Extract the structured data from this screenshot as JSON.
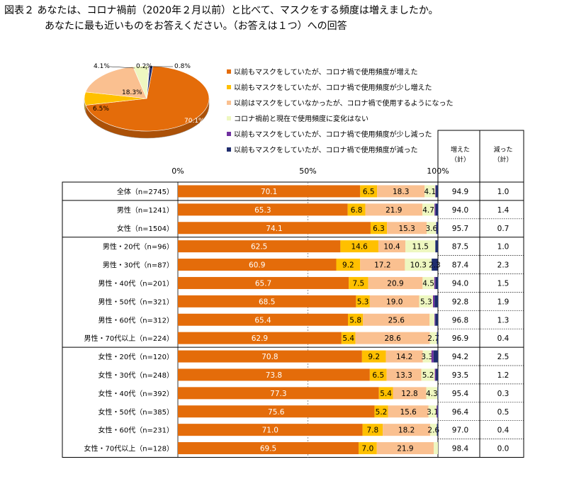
{
  "title": {
    "line1": "図表２ あなたは、コロナ禍前（2020年２月以前）と比べて、マスクをする頻度は増えましたか。",
    "line2": "あなたに最も近いものをお答えください。（お答えは１つ）への回答"
  },
  "chart_data": {
    "type": "bar",
    "stacked": true,
    "orientation": "horizontal",
    "axis": {
      "ticks": [
        "0%",
        "50%",
        "100%"
      ],
      "range": [
        0,
        100
      ]
    },
    "series": [
      {
        "name": "以前もマスクをしていたが、コロナ禍で使用頻度が増えた",
        "color": "#E46C0A"
      },
      {
        "name": "以前もマスクをしていたが、コロナ禍で使用頻度が少し増えた",
        "color": "#FFC000"
      },
      {
        "name": "以前はマスクをしていなかったが、コロナ禍で使用するようになった",
        "color": "#FAC090"
      },
      {
        "name": "コロナ禍前と現在で使用頻度に変化はない",
        "color": "#EEF7C0"
      },
      {
        "name": "以前もマスクをしていたが、コロナ禍で使用頻度が少し減った",
        "color": "#7030A0"
      },
      {
        "name": "以前もマスクをしていたが、コロナ禍で使用頻度が減った",
        "color": "#1F2D6E"
      }
    ],
    "summary_headers": [
      "増えた（計）",
      "減った（計）"
    ],
    "groups": [
      {
        "rows": [
          {
            "label": "全体（n=2745）",
            "values": [
              70.1,
              6.5,
              18.3,
              4.1,
              0.2,
              0.8
            ],
            "labels": [
              "70.1",
              "6.5",
              "18.3",
              "4.1",
              "",
              ""
            ],
            "increase": "94.9",
            "decrease": "1.0"
          }
        ]
      },
      {
        "rows": [
          {
            "label": "男性（n=1241）",
            "values": [
              65.3,
              6.8,
              21.9,
              4.7,
              0.4,
              1.0
            ],
            "labels": [
              "65.3",
              "6.8",
              "21.9",
              "4.7",
              "",
              ""
            ],
            "increase": "94.0",
            "decrease": "1.4"
          },
          {
            "label": "女性（n=1504）",
            "values": [
              74.1,
              6.3,
              15.3,
              3.6,
              0.1,
              0.6
            ],
            "labels": [
              "74.1",
              "6.3",
              "15.3",
              "3.6",
              "",
              ""
            ],
            "increase": "95.7",
            "decrease": "0.7"
          }
        ]
      },
      {
        "rows": [
          {
            "label": "男性・20代（n=96）",
            "values": [
              62.5,
              14.6,
              10.4,
              11.5,
              0.0,
              1.0
            ],
            "labels": [
              "62.5",
              "14.6",
              "10.4",
              "11.5",
              "",
              ""
            ],
            "increase": "87.5",
            "decrease": "1.0"
          },
          {
            "label": "男性・30代（n=87）",
            "values": [
              60.9,
              9.2,
              17.2,
              10.3,
              0.0,
              2.3
            ],
            "labels": [
              "60.9",
              "9.2",
              "17.2",
              "10.3",
              "",
              "2.3"
            ],
            "increase": "87.4",
            "decrease": "2.3"
          },
          {
            "label": "男性・40代（n=201）",
            "values": [
              65.7,
              7.5,
              20.9,
              4.5,
              0.5,
              1.0
            ],
            "labels": [
              "65.7",
              "7.5",
              "20.9",
              "4.5",
              "",
              ""
            ],
            "increase": "94.0",
            "decrease": "1.5"
          },
          {
            "label": "男性・50代（n=321）",
            "values": [
              68.5,
              5.3,
              19.0,
              5.3,
              0.6,
              1.3
            ],
            "labels": [
              "68.5",
              "5.3",
              "19.0",
              "5.3",
              "",
              ""
            ],
            "increase": "92.8",
            "decrease": "1.9"
          },
          {
            "label": "男性・60代（n=312）",
            "values": [
              65.4,
              5.8,
              25.6,
              1.9,
              0.3,
              1.0
            ],
            "labels": [
              "65.4",
              "5.8",
              "25.6",
              "",
              "",
              ""
            ],
            "increase": "96.8",
            "decrease": "1.3"
          },
          {
            "label": "男性・70代以上（n=224）",
            "values": [
              62.9,
              5.4,
              28.6,
              2.7,
              0.0,
              0.4
            ],
            "labels": [
              "62.9",
              "5.4",
              "28.6",
              "2.7",
              "",
              ""
            ],
            "increase": "96.9",
            "decrease": "0.4"
          }
        ]
      },
      {
        "rows": [
          {
            "label": "女性・20代（n=120）",
            "values": [
              70.8,
              9.2,
              14.2,
              3.3,
              0.8,
              1.7
            ],
            "labels": [
              "70.8",
              "9.2",
              "14.2",
              "3.3",
              "",
              ""
            ],
            "increase": "94.2",
            "decrease": "2.5"
          },
          {
            "label": "女性・30代（n=248）",
            "values": [
              73.8,
              6.5,
              13.3,
              5.2,
              0.4,
              0.8
            ],
            "labels": [
              "73.8",
              "6.5",
              "13.3",
              "5.2",
              "",
              ""
            ],
            "increase": "93.5",
            "decrease": "1.2"
          },
          {
            "label": "女性・40代（n=392）",
            "values": [
              77.3,
              5.4,
              12.8,
              4.3,
              0.0,
              0.3
            ],
            "labels": [
              "77.3",
              "5.4",
              "12.8",
              "4.3",
              "",
              ""
            ],
            "increase": "95.4",
            "decrease": "0.3"
          },
          {
            "label": "女性・50代（n=385）",
            "values": [
              75.6,
              5.2,
              15.6,
              3.1,
              0.3,
              0.3
            ],
            "labels": [
              "75.6",
              "5.2",
              "15.6",
              "3.1",
              "",
              ""
            ],
            "increase": "96.4",
            "decrease": "0.5"
          },
          {
            "label": "女性・60代（n=231）",
            "values": [
              71.0,
              7.8,
              18.2,
              2.6,
              0.0,
              0.4
            ],
            "labels": [
              "71.0",
              "7.8",
              "18.2",
              "2.6",
              "",
              ""
            ],
            "increase": "97.0",
            "decrease": "0.4"
          },
          {
            "label": "女性・70代以上（n=128）",
            "values": [
              69.5,
              7.0,
              21.9,
              1.6,
              0.0,
              0.0
            ],
            "labels": [
              "69.5",
              "7.0",
              "21.9",
              "",
              "",
              ""
            ],
            "increase": "98.4",
            "decrease": "0.0"
          }
        ]
      }
    ],
    "pie": {
      "values": [
        70.1,
        6.5,
        18.3,
        4.1,
        0.2,
        0.8
      ],
      "labels": [
        "70.1%",
        "6.5%",
        "18.3%",
        "4.1%",
        "0.2%",
        "0.8%"
      ]
    }
  }
}
